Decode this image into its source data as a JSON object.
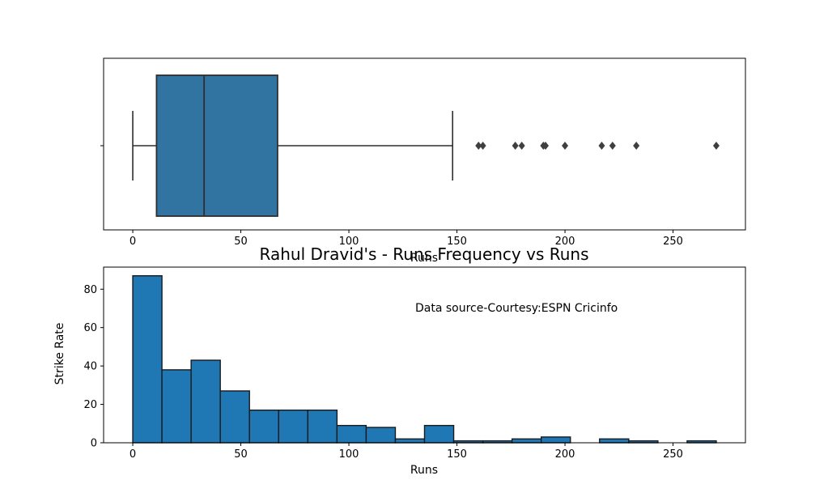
{
  "figure": {
    "background": "#ffffff",
    "title": "Rahul Dravid's - Runs Frequency vs Runs"
  },
  "chart_data": [
    {
      "id": "runs-boxplot",
      "type": "boxplot",
      "orientation": "horizontal",
      "xlabel": "Runs",
      "xlim": [
        -13.5,
        283.5
      ],
      "xticks": [
        0,
        50,
        100,
        150,
        200,
        250
      ],
      "grid": false,
      "stats": {
        "whisker_low": 0,
        "q1": 11,
        "median": 33,
        "q3": 67,
        "whisker_high": 148
      },
      "outliers": [
        160,
        162,
        177,
        180,
        190,
        191,
        200,
        217,
        222,
        233,
        270
      ],
      "colors": {
        "box_fill": "#3274a1",
        "line": "#2e2e2e",
        "outlier": "#3f3f3f",
        "spine": "#000000"
      }
    },
    {
      "id": "runs-histogram",
      "type": "bar",
      "title": "Rahul Dravid's - Runs Frequency vs Runs",
      "xlabel": "Runs",
      "ylabel": "Strike Rate",
      "annotation": "Data source-Courtesy:ESPN Cricinfo",
      "xlim": [
        -13.5,
        283.5
      ],
      "ylim": [
        0,
        91.5
      ],
      "xticks": [
        0,
        50,
        100,
        150,
        200,
        250
      ],
      "yticks": [
        0,
        20,
        40,
        60,
        80
      ],
      "grid": false,
      "bins": 20,
      "range": [
        0,
        270
      ],
      "bin_start": 0,
      "bin_width": 13.5,
      "counts": [
        87,
        38,
        43,
        27,
        17,
        17,
        17,
        9,
        8,
        2,
        9,
        1,
        1,
        2,
        3,
        0,
        2,
        1,
        0,
        1
      ],
      "colors": {
        "bar_fill": "#1f77b4",
        "bar_edge": "#1a1a1a",
        "spine": "#000000"
      }
    }
  ]
}
